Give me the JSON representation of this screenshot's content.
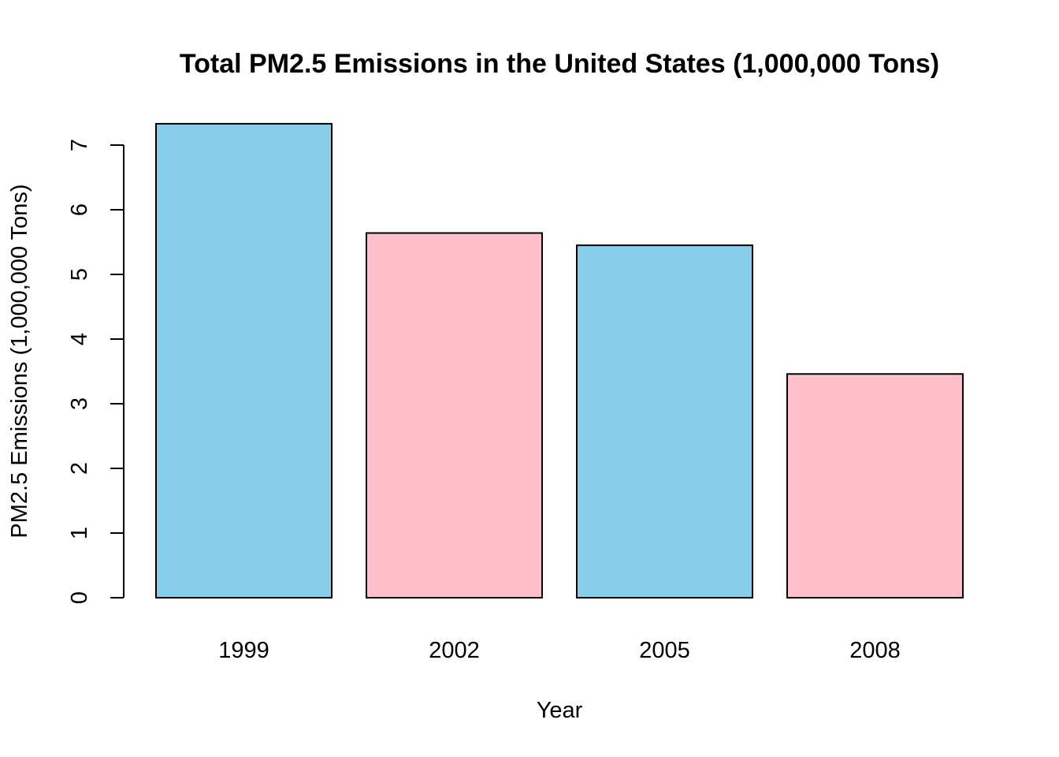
{
  "chart_data": {
    "type": "bar",
    "title": "Total PM2.5 Emissions in the United States (1,000,000 Tons)",
    "xlabel": "Year",
    "ylabel": "PM2.5 Emissions (1,000,000 Tons)",
    "categories": [
      "1999",
      "2002",
      "2005",
      "2008"
    ],
    "values": [
      7.33,
      5.64,
      5.45,
      3.46
    ],
    "bar_colors": [
      "#87CEEB",
      "#FFC0CB",
      "#87CEEB",
      "#FFC0CB"
    ],
    "yticks": [
      0,
      1,
      2,
      3,
      4,
      5,
      6,
      7
    ],
    "ylim": [
      0,
      7.33
    ],
    "grid": false,
    "legend": "none"
  }
}
